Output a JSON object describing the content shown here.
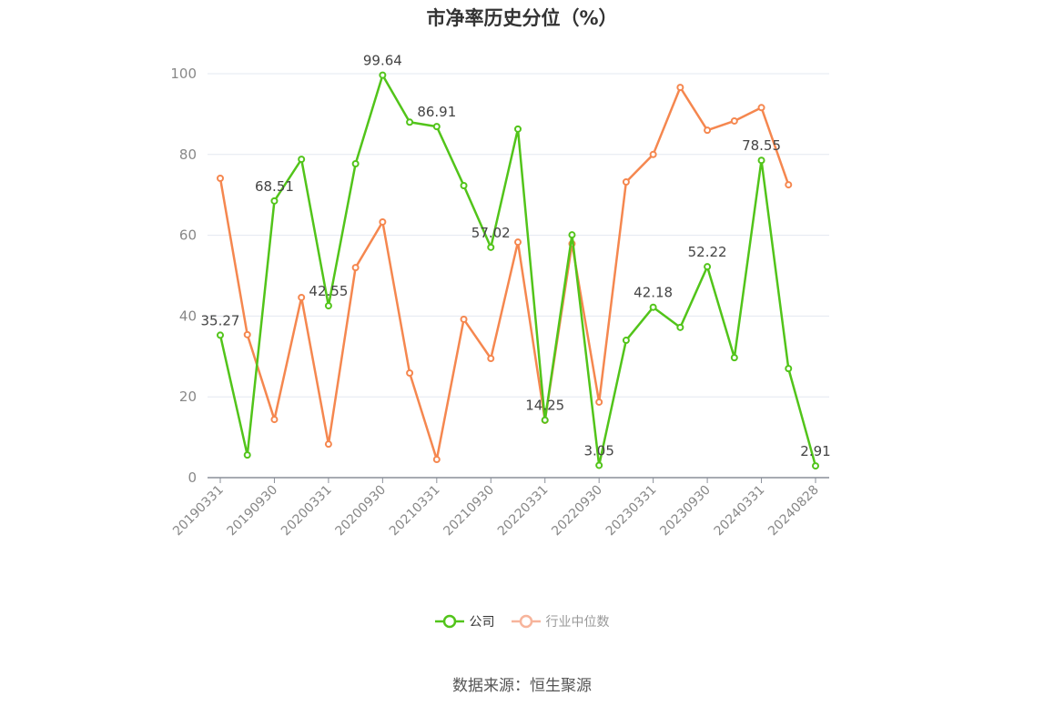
{
  "title": "市净率历史分位（%）",
  "source": "数据来源：恒生聚源",
  "legend": [
    {
      "name": "公司",
      "color": "#52c41a",
      "text_color": "#333333"
    },
    {
      "name": "行业中位数",
      "color": "#f7b49b",
      "text_color": "#999999"
    }
  ],
  "chart_data": {
    "type": "line",
    "title": "市净率历史分位（%）",
    "xlabel": "",
    "ylabel": "",
    "ylim": [
      0,
      100
    ],
    "yticks": [
      0,
      20,
      40,
      60,
      80,
      100
    ],
    "grid": true,
    "legend_position": "bottom",
    "x": [
      "20190331",
      "20190630",
      "20190930",
      "20191231",
      "20200331",
      "20200630",
      "20200930",
      "20201231",
      "20210331",
      "20210630",
      "20210930",
      "20211231",
      "20220331",
      "20220630",
      "20220930",
      "20221231",
      "20230331",
      "20230630",
      "20230930",
      "20231231",
      "20240331",
      "20240630",
      "20240828"
    ],
    "xtick_labels": [
      "20190331",
      "20190930",
      "20200331",
      "20200930",
      "20210331",
      "20210930",
      "20220331",
      "20220930",
      "20230331",
      "20230930",
      "20240331",
      "20240828"
    ],
    "series": [
      {
        "name": "公司",
        "color": "#52c41a",
        "values": [
          35.27,
          5.6,
          68.51,
          78.8,
          42.55,
          77.7,
          99.64,
          88.0,
          86.91,
          72.3,
          57.02,
          86.3,
          14.25,
          60.1,
          3.05,
          34.0,
          42.18,
          37.2,
          52.22,
          29.7,
          78.55,
          27.0,
          2.91
        ],
        "labeled_indices": [
          0,
          2,
          4,
          6,
          8,
          10,
          12,
          14,
          16,
          18,
          20,
          22
        ]
      },
      {
        "name": "行业中位数",
        "color": "#f5874f",
        "values": [
          74.1,
          35.4,
          14.4,
          44.6,
          8.3,
          52.0,
          63.3,
          25.9,
          4.5,
          39.2,
          29.5,
          58.3,
          14.2,
          57.9,
          18.7,
          73.2,
          80.0,
          96.6,
          86.0,
          88.3,
          91.6,
          72.5,
          null
        ]
      }
    ]
  }
}
